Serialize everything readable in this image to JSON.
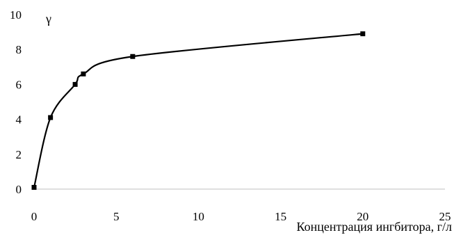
{
  "chart_data": {
    "type": "line",
    "title": "",
    "xlabel": "Концентрация ингбитора, г/л",
    "ylabel": "γ",
    "xlim": [
      0,
      25
    ],
    "ylim": [
      0,
      10
    ],
    "xticks": [
      0,
      5,
      10,
      15,
      20,
      25
    ],
    "yticks": [
      0,
      2,
      4,
      6,
      8,
      10
    ],
    "grid": false,
    "series": [
      {
        "marker": "square",
        "color": "#000000",
        "x": [
          0,
          1,
          2.5,
          3,
          6,
          20
        ],
        "y": [
          0.1,
          4.1,
          6.0,
          6.6,
          7.6,
          8.9
        ]
      }
    ]
  }
}
